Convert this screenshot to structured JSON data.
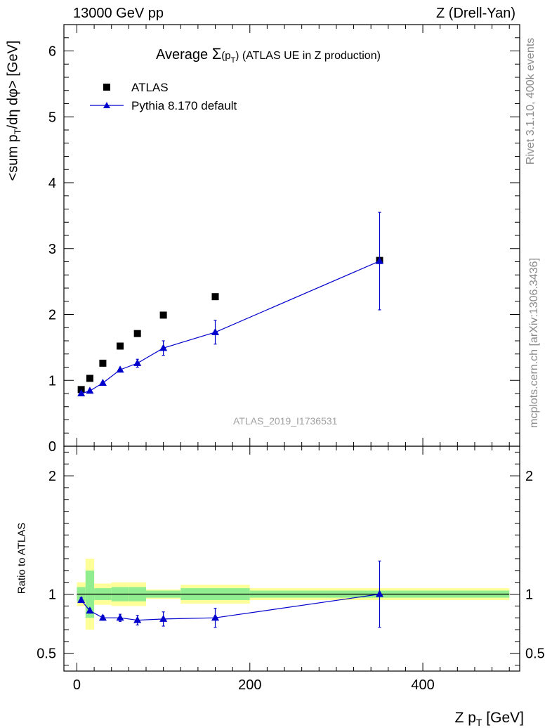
{
  "header": {
    "left": "13000 GeV pp",
    "right": "Z (Drell-Yan)"
  },
  "side_labels": {
    "rivet": "Rivet 3.1.10,  400k events",
    "mcplots": "mcplots.cern.ch [arXiv:1306.3436]"
  },
  "analysis_id": "ATLAS_2019_I1736531",
  "colors": {
    "data": "#000000",
    "mc": "#0000cc",
    "band_inner": "#90ee90",
    "band_outer": "#ffff99"
  },
  "chart_data": [
    {
      "type": "scatter",
      "title_parts": {
        "pre": "Average ",
        "sigma": "Σ",
        "open": "(p",
        "sub": "T",
        "close": ")",
        "post": " (ATLAS UE in Z production)"
      },
      "ylabel_parts": {
        "main": "<sum p",
        "sub": "T",
        "rest": "/dη dφ> [GeV]"
      },
      "xlim": [
        -15,
        512
      ],
      "ylim": [
        0,
        6.4
      ],
      "yticks": [
        0,
        1,
        2,
        3,
        4,
        5,
        6
      ],
      "grid": false,
      "legend_position": "top-left",
      "series": [
        {
          "name": "ATLAS",
          "marker": "square",
          "points": [
            {
              "x": 5,
              "y": 0.86
            },
            {
              "x": 15,
              "y": 1.03
            },
            {
              "x": 30,
              "y": 1.26
            },
            {
              "x": 50,
              "y": 1.52
            },
            {
              "x": 70,
              "y": 1.71
            },
            {
              "x": 100,
              "y": 1.99
            },
            {
              "x": 160,
              "y": 2.27
            },
            {
              "x": 350,
              "y": 2.82
            }
          ]
        },
        {
          "name": "Pythia 8.170 default",
          "marker": "triangle",
          "points": [
            {
              "x": 5,
              "y": 0.8,
              "err": 0.02
            },
            {
              "x": 15,
              "y": 0.84,
              "err": 0.02
            },
            {
              "x": 30,
              "y": 0.96,
              "err": 0.02
            },
            {
              "x": 50,
              "y": 1.16,
              "err": 0.03
            },
            {
              "x": 70,
              "y": 1.26,
              "err": 0.06
            },
            {
              "x": 100,
              "y": 1.49,
              "err": 0.11
            },
            {
              "x": 160,
              "y": 1.73,
              "err": 0.18
            },
            {
              "x": 350,
              "y": 2.81,
              "err": 0.74
            }
          ]
        }
      ]
    },
    {
      "type": "scatter",
      "ylabel": "Ratio to ATLAS",
      "xlabel_parts": {
        "main": "Z p",
        "sub": "T",
        "rest": " [GeV]"
      },
      "xlim": [
        -15,
        512
      ],
      "ylim": [
        0.35,
        2.25
      ],
      "xticks": [
        0,
        200,
        400
      ],
      "yticks": [
        0.5,
        1,
        2
      ],
      "reference_line": 1,
      "bands": [
        {
          "x0": 0,
          "x1": 10,
          "inner": [
            0.94,
            1.06
          ],
          "outer": [
            0.9,
            1.1
          ]
        },
        {
          "x0": 10,
          "x1": 20,
          "inner": [
            0.8,
            1.2
          ],
          "outer": [
            0.7,
            1.3
          ]
        },
        {
          "x0": 20,
          "x1": 40,
          "inner": [
            0.95,
            1.05
          ],
          "outer": [
            0.91,
            1.09
          ]
        },
        {
          "x0": 40,
          "x1": 60,
          "inner": [
            0.94,
            1.06
          ],
          "outer": [
            0.9,
            1.1
          ]
        },
        {
          "x0": 60,
          "x1": 80,
          "inner": [
            0.94,
            1.06
          ],
          "outer": [
            0.9,
            1.1
          ]
        },
        {
          "x0": 80,
          "x1": 120,
          "inner": [
            0.97,
            1.03
          ],
          "outer": [
            0.96,
            1.04
          ]
        },
        {
          "x0": 120,
          "x1": 200,
          "inner": [
            0.95,
            1.05
          ],
          "outer": [
            0.92,
            1.08
          ]
        },
        {
          "x0": 200,
          "x1": 500,
          "inner": [
            0.97,
            1.03
          ],
          "outer": [
            0.95,
            1.05
          ]
        }
      ],
      "series": [
        {
          "name": "Pythia 8.170 default",
          "marker": "triangle",
          "points": [
            {
              "x": 5,
              "y": 0.95,
              "err": 0.02
            },
            {
              "x": 15,
              "y": 0.86,
              "err": 0.02
            },
            {
              "x": 30,
              "y": 0.8,
              "err": 0.02
            },
            {
              "x": 50,
              "y": 0.8,
              "err": 0.03
            },
            {
              "x": 70,
              "y": 0.78,
              "err": 0.04
            },
            {
              "x": 100,
              "y": 0.79,
              "err": 0.06
            },
            {
              "x": 160,
              "y": 0.8,
              "err": 0.08
            },
            {
              "x": 350,
              "y": 1.0,
              "err": 0.28
            }
          ]
        }
      ]
    }
  ]
}
